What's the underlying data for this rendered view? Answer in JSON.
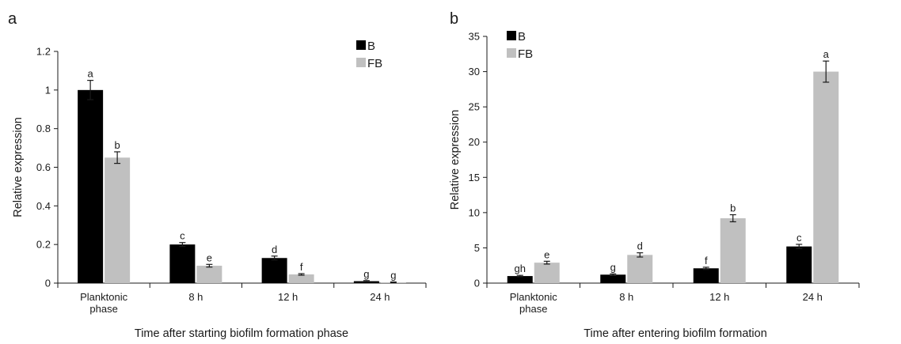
{
  "chart_data": [
    {
      "type": "bar",
      "panel_label": "a",
      "categories": [
        "Planktonic phase",
        "8 h",
        "12 h",
        "24 h"
      ],
      "categories_lines": [
        [
          "Planktonic",
          "phase"
        ],
        [
          "8 h"
        ],
        [
          "12 h"
        ],
        [
          "24 h"
        ]
      ],
      "series": [
        {
          "name": "B",
          "color": "#000000",
          "values": [
            1.0,
            0.2,
            0.13,
            0.01
          ],
          "errors": [
            0.05,
            0.01,
            0.01,
            0.003
          ],
          "labels": [
            "a",
            "c",
            "d",
            "g"
          ]
        },
        {
          "name": "FB",
          "color": "#c0c0c0",
          "values": [
            0.65,
            0.09,
            0.045,
            0.004
          ],
          "errors": [
            0.03,
            0.007,
            0.004,
            0.002
          ],
          "labels": [
            "b",
            "e",
            "f",
            "g"
          ]
        }
      ],
      "xlabel": "Time after starting biofilm formation phase",
      "ylabel": "Relative expression",
      "ylim": [
        0,
        1.2
      ],
      "yticks": [
        0,
        0.2,
        0.4,
        0.6,
        0.8,
        1,
        1.2
      ],
      "ytick_labels": [
        "0",
        "0.2",
        "0.4",
        "0.6",
        "0.8",
        "1",
        "1.2"
      ],
      "grid": false,
      "legend_position": "top-right"
    },
    {
      "type": "bar",
      "panel_label": "b",
      "categories": [
        "Planktonic phase",
        "8 h",
        "12 h",
        "24 h"
      ],
      "categories_lines": [
        [
          "Planktonic",
          "phase"
        ],
        [
          "8 h"
        ],
        [
          "12 h"
        ],
        [
          "24 h"
        ]
      ],
      "series": [
        {
          "name": "B",
          "color": "#000000",
          "values": [
            1.0,
            1.2,
            2.1,
            5.2
          ],
          "errors": [
            0.1,
            0.1,
            0.15,
            0.3
          ],
          "labels": [
            "gh",
            "g",
            "f",
            "c"
          ]
        },
        {
          "name": "FB",
          "color": "#c0c0c0",
          "values": [
            2.9,
            4.0,
            9.2,
            30.0
          ],
          "errors": [
            0.2,
            0.3,
            0.5,
            1.5
          ],
          "labels": [
            "e",
            "d",
            "b",
            "a"
          ]
        }
      ],
      "xlabel": "Time after entering biofilm formation",
      "ylabel": "Relative expression",
      "ylim": [
        0,
        35
      ],
      "yticks": [
        0,
        5,
        10,
        15,
        20,
        25,
        30,
        35
      ],
      "ytick_labels": [
        "0",
        "5",
        "10",
        "15",
        "20",
        "25",
        "30",
        "35"
      ],
      "grid": false,
      "legend_position": "top-left"
    }
  ]
}
